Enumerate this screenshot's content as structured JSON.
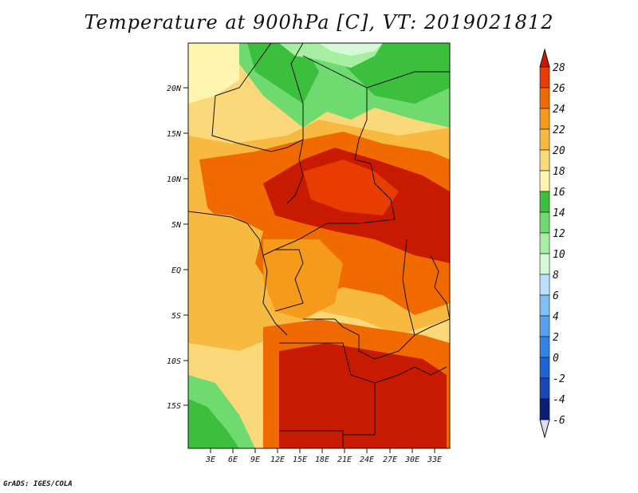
{
  "title": "Temperature at 900hPa [C], VT: 2019021812",
  "credit": "GrADS: IGES/COLA",
  "map": {
    "lat_ticks": [
      "20N",
      "15N",
      "10N",
      "5N",
      "EQ",
      "5S",
      "10S",
      "15S"
    ],
    "lon_ticks": [
      "3E",
      "6E",
      "9E",
      "12E",
      "15E",
      "18E",
      "21E",
      "24E",
      "27E",
      "30E",
      "33E"
    ]
  },
  "colorbar": {
    "levels": [
      "28",
      "26",
      "24",
      "22",
      "20",
      "18",
      "16",
      "14",
      "12",
      "10",
      "8",
      "6",
      "4",
      "2",
      "0",
      "-2",
      "-4",
      "-6"
    ],
    "colors": [
      "#c81a00",
      "#e83c00",
      "#f06a00",
      "#f59a1a",
      "#f7b940",
      "#fbd97a",
      "#fff5b0",
      "#3cbf3c",
      "#6fda6f",
      "#a6eea2",
      "#d6f8d6",
      "#b8e0fb",
      "#80bff5",
      "#5aa0f0",
      "#3283e6",
      "#1e64d2",
      "#1848b4",
      "#0a1e78",
      "#dcdcf5"
    ]
  }
}
